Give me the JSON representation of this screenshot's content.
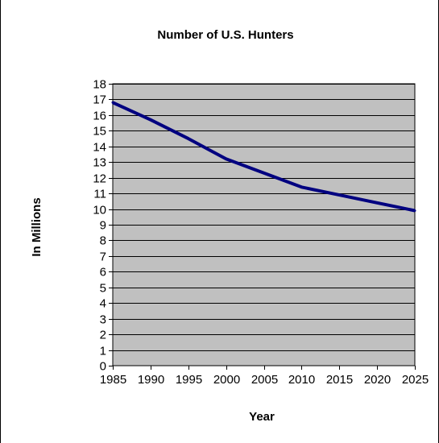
{
  "chart_data": {
    "type": "line",
    "title": "Number of U.S. Hunters",
    "xlabel": "Year",
    "ylabel": "In Millions",
    "x": [
      1985,
      1990,
      1995,
      2000,
      2005,
      2010,
      2015,
      2020,
      2025
    ],
    "series": [
      {
        "values": [
          16.8,
          15.7,
          14.5,
          13.2,
          12.3,
          11.4,
          10.9,
          10.4,
          9.9
        ]
      }
    ],
    "ylim": [
      0,
      18
    ],
    "yticks": [
      "0",
      "1",
      "2",
      "3",
      "4",
      "5",
      "6",
      "7",
      "8",
      "9",
      "10",
      "11",
      "12",
      "13",
      "14",
      "15",
      "16",
      "17",
      "18"
    ],
    "xticks": [
      "1985",
      "1990",
      "1995",
      "2000",
      "2005",
      "2010",
      "2015",
      "2020",
      "2025"
    ],
    "grid": true,
    "legend": "none",
    "colors": {
      "plot_background": "#c0c0c0",
      "line": "#000080",
      "gridline": "#000000",
      "frame": "#000000"
    }
  }
}
